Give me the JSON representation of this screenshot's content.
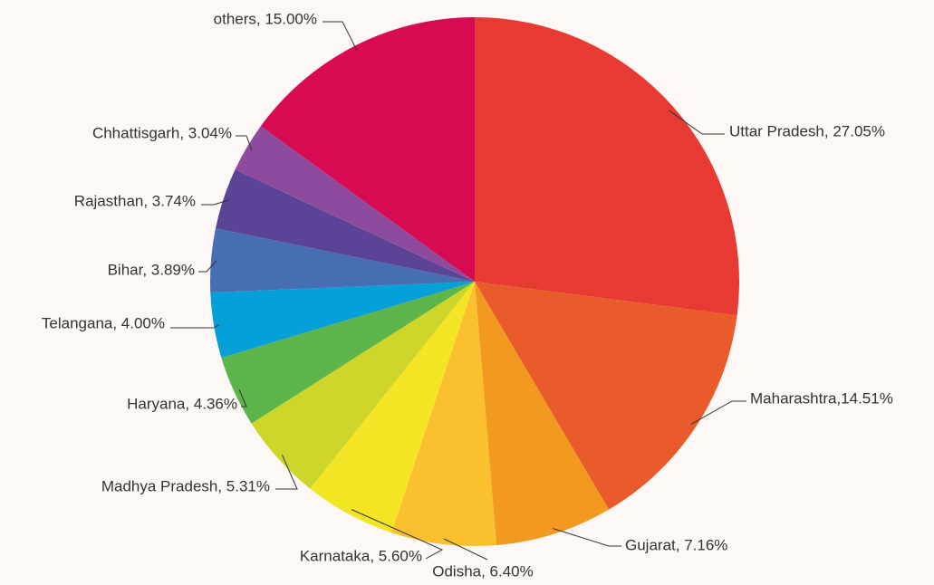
{
  "chart_data": {
    "type": "pie",
    "values": [
      27.05,
      14.51,
      7.16,
      6.4,
      5.6,
      5.31,
      4.36,
      4.0,
      3.89,
      3.74,
      3.04,
      15.0
    ],
    "value_labels": [
      "Uttar Pradesh, 27.05%",
      "Maharashtra,14.51%",
      "Gujarat, 7.16%",
      "Odisha, 6.40%",
      "Karnataka, 5.60%",
      "Madhya Pradesh, 5.31%",
      "Haryana, 4.36%",
      "Telangana, 4.00%",
      "Bihar, 3.89%",
      "Rajasthan, 3.74%",
      "Chhattisgarh, 3.04%",
      "others, 15.00%"
    ],
    "colors": [
      "#e63a33",
      "#e95b2b",
      "#f19a1f",
      "#fbc02d",
      "#f3e523",
      "#cdd629",
      "#5cb44a",
      "#05a0d8",
      "#476db3",
      "#5b4496",
      "#8e4b9e",
      "#d80a51"
    ]
  }
}
